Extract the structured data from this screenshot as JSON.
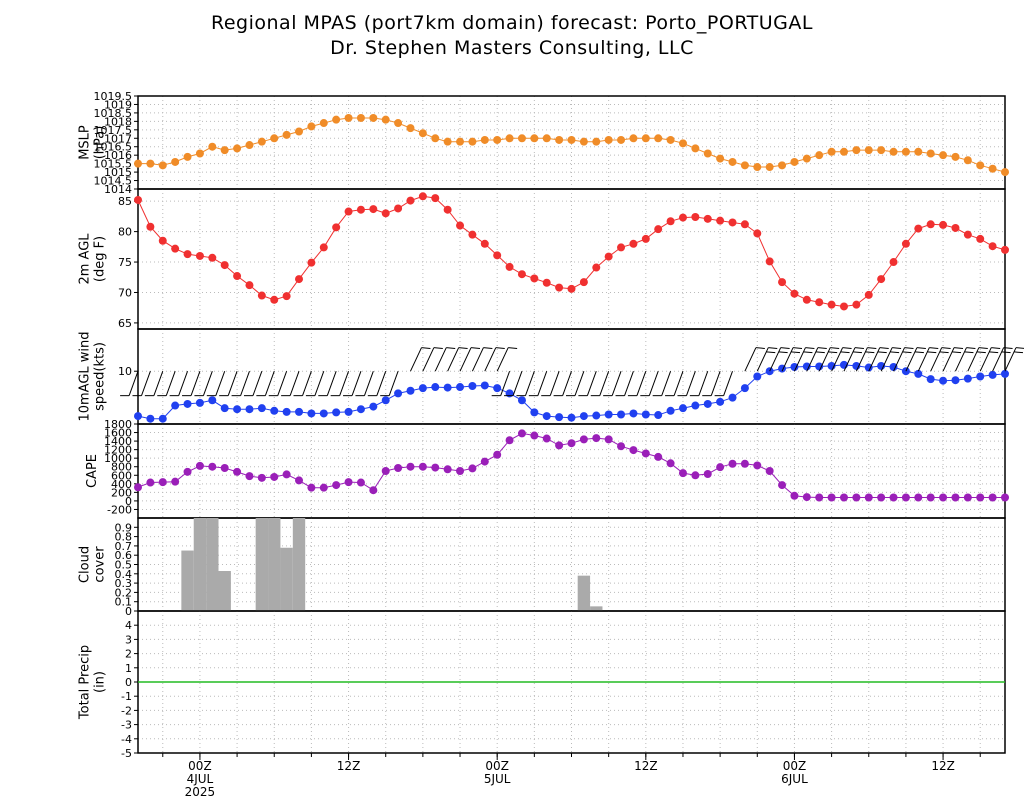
{
  "header": {
    "title": "Regional MPAS (port7km domain) forecast: Porto_PORTUGAL",
    "subtitle": "Dr. Stephen Masters Consulting, LLC"
  },
  "time_axis": {
    "hours_per_step": 1,
    "major_ticks": [
      {
        "hour": 5,
        "line1": "00Z",
        "line2": "4JUL",
        "line3": "2025"
      },
      {
        "hour": 17,
        "line1": "12Z",
        "line2": "",
        "line3": ""
      },
      {
        "hour": 29,
        "line1": "00Z",
        "line2": "5JUL",
        "line3": ""
      },
      {
        "hour": 41,
        "line1": "12Z",
        "line2": "",
        "line3": ""
      },
      {
        "hour": 53,
        "line1": "00Z",
        "line2": "6JUL",
        "line3": ""
      },
      {
        "hour": 65,
        "line1": "12Z",
        "line2": "",
        "line3": ""
      }
    ],
    "range": [
      0,
      70
    ]
  },
  "chart_data": [
    {
      "type": "line",
      "ylabel": "MSLP (hPa)",
      "ylim": [
        1014,
        1019.5
      ],
      "ticks": [
        1014,
        1014.5,
        1015,
        1015.5,
        1016,
        1016.5,
        1017,
        1017.5,
        1018,
        1018.5,
        1019,
        1019.5
      ],
      "tick_labels": [
        "1014",
        "1014.5",
        "1015",
        "1015.5",
        "1016",
        "1016.5",
        "1017",
        "1017.5",
        "1018",
        "1018.5",
        "1019",
        "1019.5"
      ],
      "color": "#f08c28",
      "values": [
        1015.5,
        1015.5,
        1015.4,
        1015.6,
        1015.9,
        1016.1,
        1016.5,
        1016.3,
        1016.4,
        1016.6,
        1016.8,
        1017.0,
        1017.2,
        1017.4,
        1017.7,
        1017.9,
        1018.1,
        1018.2,
        1018.2,
        1018.2,
        1018.1,
        1017.9,
        1017.6,
        1017.3,
        1017.0,
        1016.8,
        1016.8,
        1016.8,
        1016.9,
        1016.9,
        1017.0,
        1017.0,
        1017.0,
        1017.0,
        1016.9,
        1016.9,
        1016.8,
        1016.8,
        1016.9,
        1016.9,
        1017.0,
        1017.0,
        1017.0,
        1016.9,
        1016.7,
        1016.4,
        1016.1,
        1015.8,
        1015.6,
        1015.4,
        1015.3,
        1015.3,
        1015.4,
        1015.6,
        1015.8,
        1016.0,
        1016.2,
        1016.2,
        1016.3,
        1016.3,
        1016.3,
        1016.2,
        1016.2,
        1016.2,
        1016.1,
        1016.0,
        1015.9,
        1015.7,
        1015.4,
        1015.2,
        1015.0
      ]
    },
    {
      "type": "line",
      "ylabel": "2m AGL (deg F)",
      "ylim": [
        64,
        87
      ],
      "ticks": [
        65,
        70,
        75,
        80,
        85
      ],
      "tick_labels": [
        "65",
        "70",
        "75",
        "80",
        "85"
      ],
      "color": "#f03030",
      "values": [
        85.2,
        80.8,
        78.5,
        77.2,
        76.3,
        76.0,
        75.7,
        74.5,
        72.7,
        71.2,
        69.5,
        68.8,
        69.4,
        72.2,
        74.9,
        77.4,
        80.7,
        83.3,
        83.6,
        83.7,
        83.0,
        83.8,
        85.1,
        85.8,
        85.5,
        83.6,
        81.0,
        79.5,
        78.0,
        76.1,
        74.2,
        73.0,
        72.3,
        71.6,
        70.8,
        70.6,
        71.7,
        74.1,
        75.9,
        77.4,
        78.0,
        78.8,
        80.4,
        81.7,
        82.3,
        82.4,
        82.1,
        81.8,
        81.5,
        81.2,
        79.7,
        75.1,
        71.7,
        69.8,
        68.8,
        68.4,
        68.0,
        67.7,
        68.0,
        69.6,
        72.2,
        75.0,
        78.0,
        80.5,
        81.2,
        81.1,
        80.6,
        79.5,
        78.8,
        77.6,
        77.0
      ]
    },
    {
      "type": "line",
      "ylabel": "10mAGL wind speed(kts)",
      "ylim": [
        0,
        18
      ],
      "ticks": [
        10
      ],
      "tick_labels": [
        "10"
      ],
      "color": "#2040f0",
      "barb_line_value": 10,
      "barb_spacing_hours": 1,
      "values": [
        1.5,
        1.0,
        1.0,
        3.5,
        3.8,
        4.0,
        4.5,
        3.0,
        2.8,
        2.8,
        3.0,
        2.5,
        2.3,
        2.3,
        2.0,
        2.0,
        2.2,
        2.3,
        2.8,
        3.3,
        4.5,
        5.8,
        6.3,
        6.8,
        7.0,
        6.9,
        7.0,
        7.2,
        7.3,
        6.8,
        5.8,
        4.5,
        2.2,
        1.5,
        1.3,
        1.2,
        1.5,
        1.6,
        1.8,
        1.8,
        2.0,
        1.8,
        1.7,
        2.5,
        3.0,
        3.5,
        3.8,
        4.2,
        5.0,
        6.8,
        9.0,
        10.0,
        10.5,
        10.8,
        10.9,
        10.9,
        11.0,
        11.2,
        11.0,
        10.7,
        11.0,
        10.8,
        10.0,
        9.5,
        8.5,
        8.2,
        8.3,
        8.6,
        9.0,
        9.3,
        9.5
      ]
    },
    {
      "type": "line",
      "ylabel": "CAPE",
      "ylim": [
        -400,
        1800
      ],
      "ticks": [
        -200,
        0,
        200,
        400,
        600,
        800,
        1000,
        1200,
        1400,
        1600,
        1800
      ],
      "tick_labels": [
        "-200",
        "0",
        "200",
        "400",
        "600",
        "800",
        "1000",
        "1200",
        "1400",
        "1600",
        "1800"
      ],
      "color": "#9a1fb8",
      "values": [
        320,
        430,
        440,
        450,
        680,
        820,
        800,
        770,
        680,
        580,
        540,
        560,
        620,
        480,
        310,
        310,
        370,
        440,
        430,
        250,
        700,
        770,
        800,
        800,
        780,
        740,
        700,
        760,
        920,
        1080,
        1420,
        1580,
        1530,
        1460,
        1300,
        1350,
        1440,
        1470,
        1440,
        1280,
        1190,
        1110,
        1030,
        880,
        650,
        600,
        630,
        790,
        870,
        870,
        830,
        700,
        370,
        120,
        90,
        80,
        80,
        80,
        80,
        80,
        80,
        80,
        80,
        80,
        80,
        80,
        80,
        80,
        80,
        80,
        80
      ]
    },
    {
      "type": "bar",
      "ylabel": "Cloud cover",
      "ylim": [
        0,
        1
      ],
      "ticks": [
        0,
        0.1,
        0.2,
        0.3,
        0.4,
        0.5,
        0.6,
        0.7,
        0.8,
        0.9
      ],
      "tick_labels": [
        "0",
        "0.1",
        "0.2",
        "0.3",
        "0.4",
        "0.5",
        "0.6",
        "0.7",
        "0.8",
        "0.9"
      ],
      "color": "#aaaaaa",
      "values": [
        0,
        0,
        0,
        0.65,
        1.0,
        1.0,
        0.43,
        0,
        0,
        1.0,
        1.0,
        0.68,
        1.0,
        0,
        0,
        0,
        0,
        0,
        0,
        0,
        0,
        0,
        0,
        0,
        0,
        0,
        0,
        0,
        0,
        0,
        0,
        0,
        0,
        0,
        0,
        0.38,
        0.05,
        0,
        0,
        0,
        0,
        0,
        0,
        0,
        0,
        0,
        0,
        0,
        0,
        0,
        0,
        0,
        0,
        0,
        0,
        0,
        0,
        0,
        0,
        0,
        0,
        0,
        0,
        0,
        0,
        0,
        0,
        0,
        0,
        0,
        0
      ]
    },
    {
      "type": "line",
      "ylabel": "Total Precip (in)",
      "ylim": [
        -5,
        5
      ],
      "ticks": [
        -5,
        -4,
        -3,
        -2,
        -1,
        0,
        1,
        2,
        3,
        4
      ],
      "tick_labels": [
        "-5",
        "-4",
        "-3",
        "-2",
        "-1",
        "0",
        "1",
        "2",
        "3",
        "4"
      ],
      "color": "#22bb22",
      "values": [
        0,
        0
      ]
    }
  ]
}
